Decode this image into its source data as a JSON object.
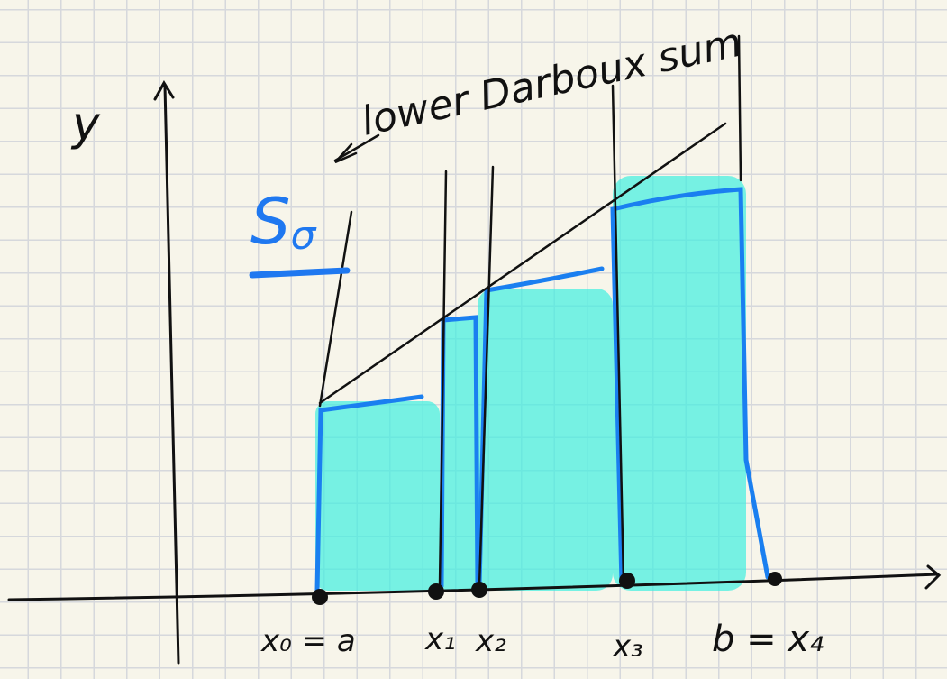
{
  "labels": {
    "y_axis": "y",
    "annotation": "lower Darboux sum",
    "symbol": "S",
    "symbol_subscript": "σ"
  },
  "points": [
    "x₀ = a",
    "x₁",
    "x₂",
    "x₃",
    "b = x₄"
  ]
}
